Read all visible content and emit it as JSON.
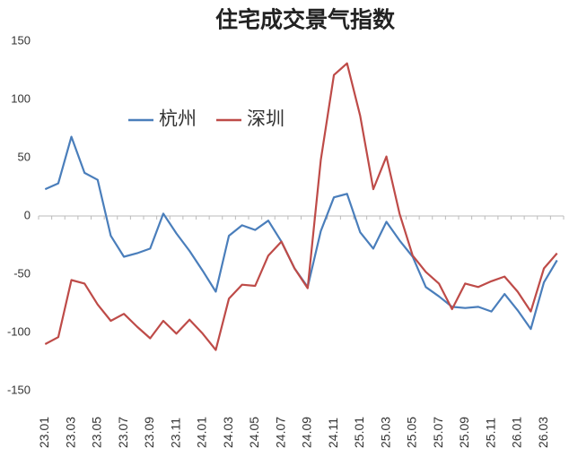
{
  "chart_data": {
    "type": "line",
    "title": "住宅成交景气指数",
    "categories": [
      "23.01",
      null,
      "23.03",
      null,
      "23.05",
      null,
      "23.07",
      null,
      "23.09",
      null,
      "23.11",
      null,
      "24.01",
      null,
      "24.03",
      null,
      "24.05",
      null,
      "24.07",
      null,
      "24.09",
      null,
      "24.11",
      null,
      "25.01",
      null,
      "25.03",
      null,
      "25.05",
      null,
      "25.07",
      null,
      "25.09",
      null,
      "25.11",
      null,
      "26.01",
      null,
      "26.03",
      null
    ],
    "series": [
      {
        "name": "杭州",
        "color": "#4a7ebb",
        "values": [
          23,
          28,
          68,
          37,
          31,
          -17,
          -35,
          -32,
          -28,
          2,
          -15,
          -30,
          -47,
          -65,
          -17,
          -8,
          -12,
          -4,
          -22,
          -45,
          -61,
          -13,
          16,
          19,
          -14,
          -28,
          -5,
          -21,
          -35,
          -61,
          -69,
          -78,
          -79,
          -78,
          -82,
          -67,
          -81,
          -97,
          -57,
          -38
        ]
      },
      {
        "name": "深圳",
        "color": "#be4b48",
        "values": [
          -110,
          -104,
          -55,
          -58,
          -76,
          -90,
          -84,
          -95,
          -105,
          -90,
          -101,
          -89,
          -101,
          -115,
          -71,
          -59,
          -60,
          -34,
          -22,
          -45,
          -62,
          48,
          121,
          131,
          86,
          23,
          51,
          2,
          -34,
          -48,
          -58,
          -80,
          -58,
          -61,
          -56,
          -52,
          -65,
          -82,
          -45,
          -32
        ]
      }
    ],
    "ylim": [
      -150,
      150
    ],
    "yticks": [
      -150,
      -100,
      -50,
      0,
      50,
      100,
      150
    ],
    "grid": false,
    "legend": "upper left"
  }
}
